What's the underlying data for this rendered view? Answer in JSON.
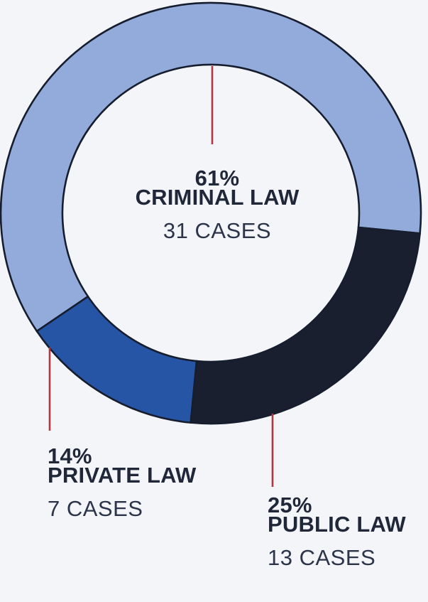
{
  "colors": {
    "background": "#f4f5f8",
    "outline": "#161d2e",
    "leader_line": "#b23740",
    "text_primary": "#1f2739",
    "text_secondary": "#2b3449"
  },
  "chart_data": {
    "type": "pie",
    "donut": true,
    "legend": "none",
    "direction": "clockwise",
    "start_angle_deg": 214.1,
    "slices": [
      {
        "label": "CRIMINAL LAW",
        "pct": 61,
        "pct_label": "61%",
        "cases": 31,
        "cases_label": "31 CASES",
        "color": "#93abdb"
      },
      {
        "label": "PUBLIC LAW",
        "pct": 25,
        "pct_label": "25%",
        "cases": 13,
        "cases_label": "13 CASES",
        "color": "#191f2e"
      },
      {
        "label": "PRIVATE LAW",
        "pct": 14,
        "pct_label": "14%",
        "cases": 7,
        "cases_label": "7 CASES",
        "color": "#2555a4"
      }
    ]
  }
}
